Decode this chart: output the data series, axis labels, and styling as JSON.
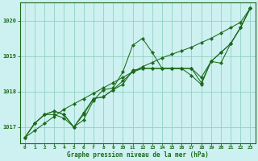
{
  "title": "Graphe pression niveau de la mer (hPa)",
  "background_color": "#cdf0f0",
  "plot_bg_color": "#cdf0f0",
  "line_color": "#1a6b1a",
  "grid_color": "#88ccbb",
  "ylim": [
    1016.55,
    1020.5
  ],
  "yticks": [
    1017,
    1018,
    1019,
    1020
  ],
  "xlim": [
    -0.5,
    23.5
  ],
  "xticks": [
    0,
    1,
    2,
    3,
    4,
    5,
    6,
    7,
    8,
    9,
    10,
    11,
    12,
    13,
    14,
    15,
    16,
    17,
    18,
    19,
    20,
    21,
    22,
    23
  ],
  "line_jagged": [
    1016.7,
    1017.1,
    1017.35,
    1017.35,
    1017.25,
    1017.0,
    1017.2,
    1017.75,
    1018.05,
    1018.1,
    1018.55,
    1019.3,
    1019.5,
    1019.1,
    1018.65,
    1018.65,
    1018.65,
    1018.45,
    1018.2,
    1018.85,
    1019.1,
    1019.35,
    1019.8,
    1020.35
  ],
  "line_trend": [
    1016.7,
    1016.9,
    1017.1,
    1017.3,
    1017.5,
    1017.65,
    1017.8,
    1017.95,
    1018.1,
    1018.25,
    1018.4,
    1018.55,
    1018.7,
    1018.82,
    1018.95,
    1019.05,
    1019.15,
    1019.25,
    1019.38,
    1019.5,
    1019.65,
    1019.8,
    1019.95,
    1020.35
  ],
  "line_mid1": [
    1016.7,
    1017.1,
    1017.35,
    1017.45,
    1017.35,
    1017.0,
    1017.35,
    1017.8,
    1017.85,
    1018.05,
    1018.2,
    1018.6,
    1018.65,
    1018.65,
    1018.65,
    1018.65,
    1018.65,
    1018.65,
    1018.25,
    1018.85,
    1018.8,
    1019.35,
    1019.8,
    1020.35
  ],
  "line_mid2": [
    1016.7,
    1017.1,
    1017.35,
    1017.45,
    1017.35,
    1017.0,
    1017.4,
    1017.8,
    1017.85,
    1018.05,
    1018.3,
    1018.55,
    1018.65,
    1018.65,
    1018.65,
    1018.65,
    1018.65,
    1018.65,
    1018.4,
    1018.85,
    1019.1,
    1019.35,
    1019.8,
    1020.35
  ],
  "figsize": [
    3.2,
    2.0
  ],
  "dpi": 100
}
